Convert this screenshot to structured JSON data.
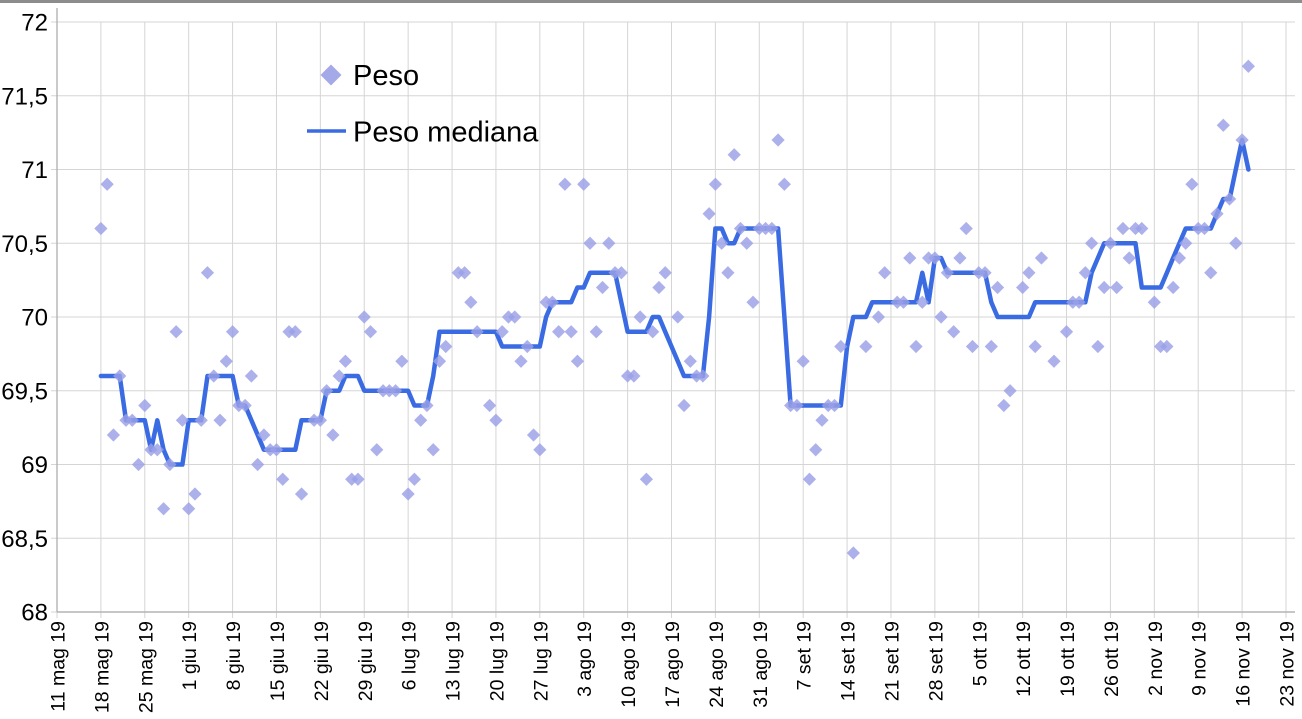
{
  "window": {
    "background": "#ffffff"
  },
  "chart_data": {
    "type": "scatter",
    "title": "",
    "xlabel": "",
    "ylabel": "",
    "grid": true,
    "legend_position": "top-left-inside",
    "x_axis": {
      "tick_labels": [
        "11 mag 19",
        "18 mag 19",
        "25 mag 19",
        "1 giu 19",
        "8 giu 19",
        "15 giu 19",
        "22 giu 19",
        "29 giu 19",
        "6 lug 19",
        "13 lug 19",
        "20 lug 19",
        "27 lug 19",
        "3 ago 19",
        "10 ago 19",
        "17 ago 19",
        "24 ago 19",
        "31 ago 19",
        "7 set 19",
        "14 set 19",
        "21 set 19",
        "28 set 19",
        "5 ott 19",
        "12 ott 19",
        "19 ott 19",
        "26 ott 19",
        "2 nov 19",
        "9 nov 19",
        "16 nov 19",
        "23 nov 19"
      ],
      "tick_interval_days": 7
    },
    "y_axis": {
      "tick_labels": [
        "72",
        "71,5",
        "71",
        "70,5",
        "70",
        "69,5",
        "69",
        "68,5",
        "68"
      ],
      "min": 68,
      "max": 72,
      "step": 0.5,
      "decimal_separator": ","
    },
    "data_start_date": "18 mag 19",
    "data_end_date": "17 nov 19",
    "data_start_offset_days_from_first_tick": 7,
    "frequency": "daily",
    "series": [
      {
        "name": "Peso",
        "type": "scatter",
        "marker": "diamond",
        "color": "#9aa0e6",
        "values": [
          70.6,
          70.9,
          69.2,
          69.6,
          69.3,
          69.3,
          69.0,
          69.4,
          69.1,
          69.1,
          68.7,
          69.0,
          69.9,
          69.3,
          68.7,
          68.8,
          69.3,
          70.3,
          69.6,
          69.3,
          69.7,
          69.9,
          69.4,
          69.4,
          69.6,
          69.0,
          69.2,
          69.1,
          69.1,
          68.9,
          69.9,
          69.9,
          68.8,
          null,
          69.3,
          69.3,
          69.5,
          69.2,
          69.6,
          69.7,
          68.9,
          68.9,
          70.0,
          69.9,
          69.1,
          69.5,
          69.5,
          69.5,
          69.7,
          68.8,
          68.9,
          69.3,
          69.4,
          69.1,
          69.7,
          69.8,
          null,
          70.3,
          70.3,
          70.1,
          69.9,
          null,
          69.4,
          69.3,
          69.9,
          70.0,
          70.0,
          69.7,
          69.8,
          69.2,
          69.1,
          70.1,
          70.1,
          69.9,
          70.9,
          69.9,
          69.7,
          70.9,
          70.5,
          69.9,
          70.2,
          70.5,
          70.3,
          70.3,
          69.6,
          69.6,
          70.0,
          68.9,
          69.9,
          70.2,
          70.3,
          null,
          70.0,
          69.4,
          69.7,
          69.6,
          69.6,
          70.7,
          70.9,
          70.5,
          70.3,
          71.1,
          70.6,
          70.5,
          70.1,
          70.6,
          70.6,
          70.6,
          71.2,
          70.9,
          69.4,
          69.4,
          69.7,
          68.9,
          69.1,
          69.3,
          69.4,
          69.4,
          69.8,
          null,
          68.4,
          null,
          69.8,
          null,
          70.0,
          70.3,
          null,
          70.1,
          70.1,
          70.4,
          69.8,
          70.1,
          70.4,
          70.4,
          70.0,
          70.3,
          69.9,
          70.4,
          70.6,
          69.8,
          70.3,
          70.3,
          69.8,
          70.2,
          69.4,
          69.5,
          null,
          70.2,
          70.3,
          69.8,
          70.4,
          null,
          69.7,
          null,
          69.9,
          70.1,
          70.1,
          70.3,
          70.5,
          69.8,
          70.2,
          70.5,
          70.2,
          70.6,
          70.4,
          70.6,
          70.6,
          null,
          70.1,
          69.8,
          69.8,
          70.2,
          70.4,
          70.5,
          70.9,
          70.6,
          70.6,
          70.3,
          70.7,
          71.3,
          70.8,
          70.5,
          71.2,
          71.7
        ]
      },
      {
        "name": "Peso mediana",
        "type": "line",
        "color": "#3a6be2",
        "values": [
          69.6,
          69.6,
          69.6,
          69.6,
          69.3,
          69.3,
          69.3,
          69.3,
          69.1,
          69.3,
          69.1,
          69.0,
          69.0,
          69.0,
          69.3,
          69.3,
          69.3,
          69.6,
          69.6,
          69.6,
          69.6,
          69.6,
          69.4,
          69.4,
          69.3,
          69.2,
          69.1,
          69.1,
          69.1,
          69.1,
          69.1,
          69.1,
          69.3,
          69.3,
          69.3,
          69.3,
          69.5,
          69.5,
          69.5,
          69.6,
          69.6,
          69.6,
          69.5,
          69.5,
          69.5,
          69.5,
          69.5,
          69.5,
          69.5,
          69.5,
          69.4,
          69.4,
          69.4,
          69.6,
          69.9,
          69.9,
          69.9,
          69.9,
          69.9,
          69.9,
          69.9,
          69.9,
          69.9,
          69.9,
          69.8,
          69.8,
          69.8,
          69.8,
          69.8,
          69.8,
          69.8,
          70.0,
          70.1,
          70.1,
          70.1,
          70.1,
          70.2,
          70.2,
          70.3,
          70.3,
          70.3,
          70.3,
          70.3,
          70.1,
          69.9,
          69.9,
          69.9,
          69.9,
          70.0,
          70.0,
          69.9,
          69.8,
          69.7,
          69.6,
          69.6,
          69.6,
          69.6,
          70.0,
          70.6,
          70.6,
          70.5,
          70.5,
          70.6,
          70.6,
          70.6,
          70.6,
          70.6,
          70.6,
          70.6,
          70.0,
          69.4,
          69.4,
          69.4,
          69.4,
          69.4,
          69.4,
          69.4,
          69.4,
          69.4,
          69.8,
          70.0,
          70.0,
          70.0,
          70.1,
          70.1,
          70.1,
          70.1,
          70.1,
          70.1,
          70.1,
          70.1,
          70.3,
          70.1,
          70.4,
          70.4,
          70.3,
          70.3,
          70.3,
          70.3,
          70.3,
          70.3,
          70.3,
          70.1,
          70.0,
          70.0,
          70.0,
          70.0,
          70.0,
          70.0,
          70.1,
          70.1,
          70.1,
          70.1,
          70.1,
          70.1,
          70.1,
          70.1,
          70.1,
          70.3,
          70.4,
          70.5,
          70.5,
          70.5,
          70.5,
          70.5,
          70.5,
          70.2,
          70.2,
          70.2,
          70.2,
          70.3,
          70.4,
          70.5,
          70.6,
          70.6,
          70.6,
          70.6,
          70.6,
          70.7,
          70.8,
          70.8,
          71.0,
          71.2,
          71.0
        ]
      }
    ]
  },
  "colors": {
    "grid": "#d5d5d5",
    "axis": "#b3b3b3",
    "tick_text": "#000000",
    "legend_text": "#000000",
    "frame_top": "#8c8c8c",
    "background": "#ffffff"
  }
}
